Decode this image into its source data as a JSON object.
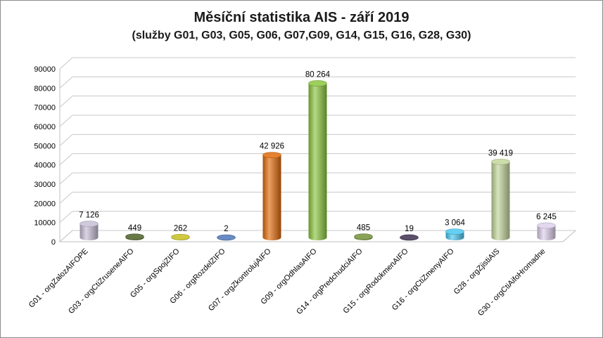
{
  "chart_data": {
    "type": "bar",
    "title": "Měsíční statistika AIS -  září 2019",
    "subtitle": "(služby G01, G03, G05, G06, G07,G09, G14, G15, G16, G28, G30)",
    "categories": [
      "G01 - orgZalozAIFOPE",
      "G03 - orgCtiZruseneAIFO",
      "G05 - orgSpojZIFO",
      "G06 - orgRozdelZIFO",
      "G07 - orgZkontrolujAIFO",
      "G09 - orgOdhlasAIFO",
      "G14 - orgPredchudciAIFO",
      "G15 - orgRodokmenAIFO",
      "G16 - orgCtiZmenyAIFO",
      "G28 - orgZjistiAIS",
      "G30 - orgCtiAifoHromadne"
    ],
    "values": [
      7126,
      449,
      262,
      2,
      42926,
      80264,
      485,
      19,
      3064,
      39419,
      6245
    ],
    "data_labels": [
      "7 126",
      "449",
      "262",
      "2",
      "42 926",
      "80 264",
      "485",
      "19",
      "3 064",
      "39 419",
      "6 245"
    ],
    "colors": [
      "#c6bfd6",
      "#4f6228",
      "#c5c020",
      "#4f77b8",
      "#e26b0a",
      "#8cc63f",
      "#77933c",
      "#403151",
      "#4bc6ee",
      "#c3d69b",
      "#ddd0ec"
    ],
    "y_ticks": [
      "0",
      "10000",
      "20000",
      "30000",
      "40000",
      "50000",
      "60000",
      "70000",
      "80000",
      "90000"
    ],
    "ylim": [
      0,
      90000
    ],
    "grid": true,
    "legend": "none",
    "bar_style": "3d-cylinder"
  }
}
